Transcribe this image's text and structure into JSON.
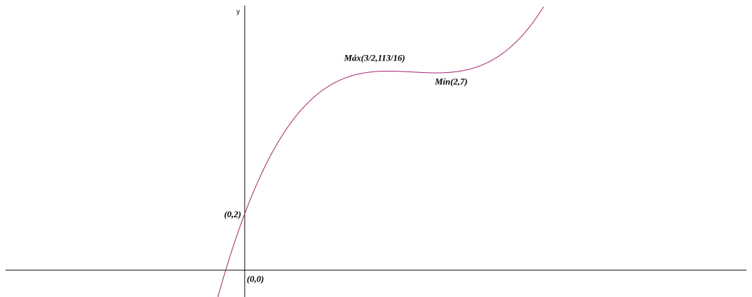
{
  "chart_data": {
    "type": "line",
    "function": "f(x) = x^3 - (21/4)x^2 + 9x + 2",
    "ylabel": "y",
    "xlim": [
      -0.28,
      11.1
    ],
    "ylim": [
      -0.39,
      9.35
    ],
    "grid": false,
    "legend": "none",
    "series": [
      {
        "color": "#a0206c",
        "points": [
          [
            -0.2,
            0.0
          ],
          [
            0.0,
            2.0
          ],
          [
            0.2,
            3.6
          ],
          [
            0.4,
            4.824
          ],
          [
            0.6,
            5.726
          ],
          [
            0.8,
            6.352
          ],
          [
            1.0,
            6.75
          ],
          [
            1.2,
            6.968
          ],
          [
            1.4,
            7.054
          ],
          [
            1.5,
            7.0625
          ],
          [
            1.6,
            7.056
          ],
          [
            1.8,
            7.022
          ],
          [
            2.0,
            7.0
          ],
          [
            2.2,
            7.038
          ],
          [
            2.4,
            7.184
          ],
          [
            2.6,
            7.486
          ],
          [
            2.8,
            7.992
          ],
          [
            3.0,
            8.75
          ],
          [
            3.12,
            9.35
          ]
        ]
      }
    ],
    "annotations": [
      {
        "id": "origin",
        "text": "(0,0)",
        "x": 0,
        "y": 0
      },
      {
        "id": "intercept",
        "text": "(0,2)",
        "x": 0,
        "y": 2
      },
      {
        "id": "max",
        "text": "Máx(3/2,113/16)",
        "x": 1.5,
        "y": 7.0625
      },
      {
        "id": "min",
        "text": "Mín(2,7)",
        "x": 2,
        "y": 7
      }
    ]
  }
}
